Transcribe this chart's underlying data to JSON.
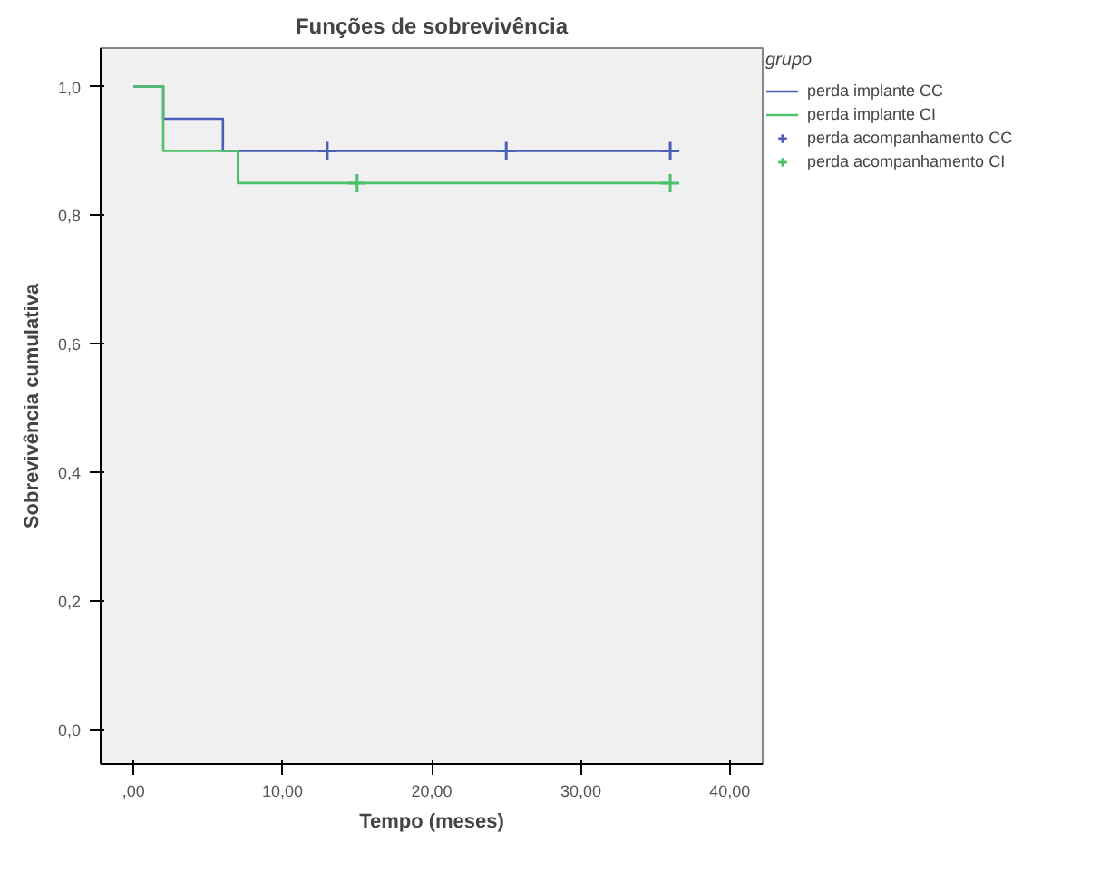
{
  "chart_data": {
    "type": "step",
    "title": "Funções de sobrevivência",
    "xlabel": "Tempo (meses)",
    "ylabel": "Sobrevivência cumulativa",
    "legend_title": "grupo",
    "legend": "right",
    "grid": false,
    "xlim": [
      -2.2,
      42.2
    ],
    "ylim": [
      -0.054,
      1.06
    ],
    "xticks": [
      {
        "value": 0,
        "label": ",00"
      },
      {
        "value": 10,
        "label": "10,00"
      },
      {
        "value": 20,
        "label": "20,00"
      },
      {
        "value": 30,
        "label": "30,00"
      },
      {
        "value": 40,
        "label": "40,00"
      }
    ],
    "yticks": [
      {
        "value": 0,
        "label": "0,0"
      },
      {
        "value": 0.2,
        "label": "0,2"
      },
      {
        "value": 0.4,
        "label": "0,4"
      },
      {
        "value": 0.6,
        "label": "0,6"
      },
      {
        "value": 0.8,
        "label": "0,8"
      },
      {
        "value": 1,
        "label": "1,0"
      }
    ],
    "series": [
      {
        "name": "perda implante CC",
        "color": "#4a5fb5",
        "line_style": "solid",
        "marker": "none",
        "x": [
          0,
          2,
          6,
          36
        ],
        "values": [
          1,
          0.95,
          0.9,
          0.9
        ]
      },
      {
        "name": "perda implante CI",
        "color": "#4ec26b",
        "line_style": "solid",
        "marker": "none",
        "x": [
          0,
          2,
          7,
          36
        ],
        "values": [
          1,
          0.9,
          0.85,
          0.85
        ]
      },
      {
        "name": "perda acompanhamento CC",
        "type": "scatter",
        "color": "#4a5fb5",
        "marker": "cross",
        "x": [
          13,
          25,
          36
        ],
        "values": [
          0.9,
          0.9,
          0.9
        ]
      },
      {
        "name": "perda acompanhamento CI",
        "type": "scatter",
        "color": "#4ec26b",
        "marker": "cross",
        "x": [
          15,
          36
        ],
        "values": [
          0.85,
          0.85
        ]
      }
    ]
  }
}
